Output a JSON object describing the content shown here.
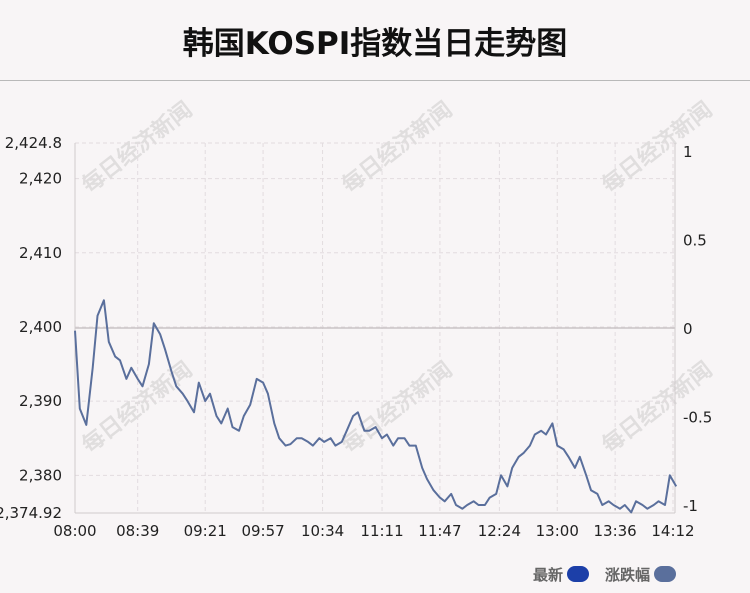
{
  "title": "韩国KOSPI指数当日走势图",
  "watermark": "每日经济新闻",
  "legend": [
    {
      "label": "最新",
      "color": "#1c3fa8"
    },
    {
      "label": "涨跌幅",
      "color": "#5a6f9c"
    }
  ],
  "chart_data": {
    "type": "line",
    "x_ticks": [
      "08:00",
      "08:39",
      "09:21",
      "09:57",
      "10:34",
      "11:11",
      "11:47",
      "12:24",
      "13:00",
      "13:36",
      "14:12"
    ],
    "y_left_ticks": [
      "2,424.8",
      "2,420",
      "2,410",
      "2,400",
      "2,390",
      "2,380",
      "2,374.92"
    ],
    "y_right_ticks": [
      "1",
      "0.5",
      "0",
      "-0.5",
      "-1"
    ],
    "ylim_left": [
      2374.92,
      2424.8
    ],
    "ylim_right": [
      -1.045,
      1.045
    ],
    "reference_value": 2399.86,
    "grid": true,
    "series": [
      {
        "color": "#5a6f9c",
        "x": [
          "08:00",
          "08:03",
          "08:07",
          "08:11",
          "08:14",
          "08:18",
          "08:21",
          "08:25",
          "08:28",
          "08:32",
          "08:35",
          "08:39",
          "08:42",
          "08:46",
          "08:49",
          "08:53",
          "08:56",
          "09:00",
          "09:03",
          "09:07",
          "09:10",
          "09:14",
          "09:17",
          "09:21",
          "09:24",
          "09:28",
          "09:31",
          "09:35",
          "09:38",
          "09:42",
          "09:45",
          "09:49",
          "09:53",
          "09:57",
          "10:00",
          "10:04",
          "10:07",
          "10:11",
          "10:14",
          "10:18",
          "10:21",
          "10:25",
          "10:28",
          "10:32",
          "10:35",
          "10:39",
          "10:42",
          "10:46",
          "10:49",
          "10:53",
          "10:56",
          "11:00",
          "11:03",
          "11:07",
          "11:11",
          "11:14",
          "11:18",
          "11:21",
          "11:25",
          "11:28",
          "11:32",
          "11:36",
          "11:39",
          "11:43",
          "11:47",
          "11:50",
          "11:54",
          "11:57",
          "12:01",
          "12:04",
          "12:08",
          "12:11",
          "12:15",
          "12:18",
          "12:22",
          "12:25",
          "12:29",
          "12:32",
          "12:36",
          "12:39",
          "12:43",
          "12:46",
          "12:50",
          "12:53",
          "12:57",
          "13:00",
          "13:04",
          "13:07",
          "13:11",
          "13:14",
          "13:18",
          "13:21",
          "13:25",
          "13:28",
          "13:32",
          "13:35",
          "13:39",
          "13:42",
          "13:46",
          "13:49",
          "13:53",
          "13:56",
          "14:00",
          "14:03",
          "14:07",
          "14:10",
          "14:14"
        ],
        "y": [
          2399.5,
          2389.0,
          2386.8,
          2394.5,
          2401.5,
          2403.6,
          2398.0,
          2396.0,
          2395.5,
          2393.0,
          2394.5,
          2393.0,
          2392.0,
          2395.0,
          2400.5,
          2399.0,
          2397.0,
          2394.0,
          2392.0,
          2391.0,
          2390.0,
          2388.5,
          2392.5,
          2390.0,
          2391.0,
          2388.0,
          2387.0,
          2389.0,
          2386.5,
          2386.0,
          2388.0,
          2389.5,
          2393.0,
          2392.5,
          2391.0,
          2387.0,
          2385.0,
          2384.0,
          2384.2,
          2385.0,
          2385.0,
          2384.5,
          2384.0,
          2385.0,
          2384.5,
          2385.0,
          2384.0,
          2384.5,
          2386.0,
          2388.0,
          2388.5,
          2386.0,
          2386.0,
          2386.5,
          2385.0,
          2385.5,
          2384.0,
          2385.0,
          2385.0,
          2384.0,
          2384.0,
          2381.0,
          2379.5,
          2378.0,
          2377.0,
          2376.5,
          2377.5,
          2376.0,
          2375.5,
          2376.0,
          2376.5,
          2376.0,
          2376.0,
          2377.0,
          2377.5,
          2380.0,
          2378.5,
          2381.0,
          2382.5,
          2383.0,
          2384.0,
          2385.5,
          2386.0,
          2385.5,
          2387.0,
          2384.0,
          2383.5,
          2382.5,
          2381.0,
          2382.5,
          2380.0,
          2378.0,
          2377.5,
          2376.0,
          2376.5,
          2376.0,
          2375.5,
          2376.0,
          2375.0,
          2376.5,
          2376.0,
          2375.5,
          2376.0,
          2376.5,
          2376.0,
          2380.0,
          2378.5
        ]
      }
    ]
  }
}
